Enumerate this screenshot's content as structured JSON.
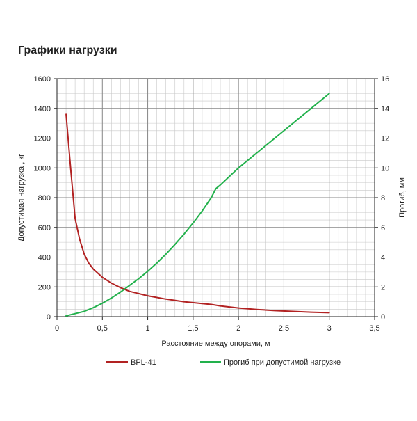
{
  "page_title": "Графики нагрузки",
  "chart_data": {
    "type": "line",
    "title": "Графики нагрузки",
    "xlabel": "Расстояние между опорами, м",
    "ylabel_left": "Допустимая нагрузка , кг",
    "ylabel_right": "Прогиб, мм",
    "xlim": [
      0,
      3.5
    ],
    "ylim_left": [
      0,
      1600
    ],
    "ylim_right": [
      0,
      16
    ],
    "x_ticks": [
      0,
      0.5,
      1,
      1.5,
      2,
      2.5,
      3,
      3.5
    ],
    "x_tick_labels": [
      "0",
      "0,5",
      "1",
      "1,5",
      "2",
      "2,5",
      "3",
      "3,5"
    ],
    "y_left_ticks": [
      0,
      200,
      400,
      600,
      800,
      1000,
      1200,
      1400,
      1600
    ],
    "y_left_tick_labels": [
      "0",
      "200",
      "400",
      "600",
      "800",
      "1000",
      "1200",
      "1400",
      "1600"
    ],
    "y_right_ticks": [
      0,
      2,
      4,
      6,
      8,
      10,
      12,
      14,
      16
    ],
    "y_right_tick_labels": [
      "0",
      "2",
      "4",
      "6",
      "8",
      "10",
      "12",
      "14",
      "16"
    ],
    "grid": true,
    "legend_position": "bottom",
    "series": [
      {
        "name": "BPL-41",
        "axis": "left",
        "color": "#b22222",
        "x": [
          0.1,
          0.15,
          0.2,
          0.25,
          0.3,
          0.35,
          0.4,
          0.5,
          0.6,
          0.7,
          0.8,
          1.0,
          1.2,
          1.4,
          1.6,
          1.7,
          1.8,
          2.0,
          2.2,
          2.4,
          2.6,
          2.8,
          3.0
        ],
        "y": [
          1360,
          1000,
          660,
          520,
          420,
          360,
          320,
          265,
          225,
          195,
          170,
          140,
          118,
          100,
          88,
          82,
          72,
          58,
          48,
          40,
          35,
          30,
          26
        ]
      },
      {
        "name": "Прогиб при допустимой нагрузке",
        "axis": "right",
        "color": "#22b14c",
        "x": [
          0.1,
          0.2,
          0.3,
          0.4,
          0.5,
          0.6,
          0.7,
          0.8,
          0.9,
          1.0,
          1.1,
          1.2,
          1.3,
          1.4,
          1.5,
          1.6,
          1.7,
          1.75,
          1.8,
          2.0,
          2.2,
          2.4,
          2.6,
          2.8,
          3.0
        ],
        "y": [
          0.05,
          0.2,
          0.35,
          0.6,
          0.9,
          1.25,
          1.65,
          2.1,
          2.55,
          3.05,
          3.6,
          4.2,
          4.85,
          5.55,
          6.3,
          7.1,
          8.0,
          8.6,
          8.85,
          10.0,
          11.0,
          12.0,
          13.0,
          14.0,
          15.0
        ]
      }
    ]
  }
}
